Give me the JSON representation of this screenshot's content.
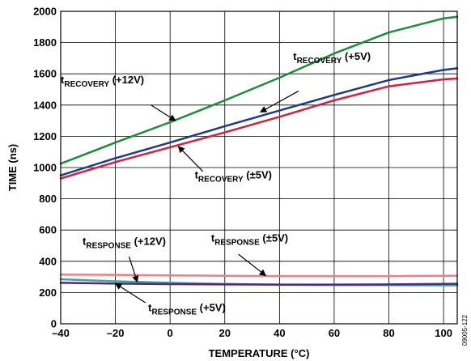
{
  "chart_data": {
    "type": "line",
    "xlabel": "TEMPERATURE (°C)",
    "ylabel": "TIME (ns)",
    "xlim": [
      -40,
      105
    ],
    "ylim": [
      0,
      2000
    ],
    "xticks": [
      -40,
      -20,
      0,
      20,
      40,
      60,
      80,
      100
    ],
    "xtick_labels": [
      "–40",
      "–20",
      "0",
      "20",
      "40",
      "60",
      "80",
      "100"
    ],
    "yticks": [
      0,
      200,
      400,
      600,
      800,
      1000,
      1200,
      1400,
      1600,
      1800,
      2000
    ],
    "ytick_labels": [
      "0",
      "200",
      "400",
      "600",
      "800",
      "1000",
      "1200",
      "1400",
      "1600",
      "1800",
      "2000"
    ],
    "grid": true,
    "figure_id": "09005-122",
    "series": [
      {
        "name": "tRECOVERY (+12V)",
        "color": "#1e8c3a",
        "x": [
          -40,
          -20,
          0,
          20,
          40,
          60,
          80,
          100,
          105
        ],
        "y": [
          1025,
          1160,
          1290,
          1430,
          1575,
          1730,
          1865,
          1955,
          1965
        ]
      },
      {
        "name": "tRECOVERY (+5V)",
        "color": "#1f3a8a",
        "x": [
          -40,
          -20,
          0,
          20,
          40,
          60,
          80,
          100,
          105
        ],
        "y": [
          950,
          1060,
          1160,
          1265,
          1365,
          1465,
          1560,
          1625,
          1635
        ]
      },
      {
        "name": "tRECOVERY (±5V)",
        "color": "#d6203d",
        "x": [
          -40,
          -20,
          0,
          20,
          40,
          60,
          80,
          100,
          105
        ],
        "y": [
          930,
          1035,
          1130,
          1225,
          1325,
          1430,
          1520,
          1565,
          1570
        ]
      },
      {
        "name": "tRESPONSE (±5V)",
        "color": "#ec7f8a",
        "x": [
          -40,
          -20,
          0,
          20,
          40,
          60,
          80,
          100,
          105
        ],
        "y": [
          315,
          313,
          310,
          307,
          305,
          305,
          305,
          307,
          308
        ]
      },
      {
        "name": "tRESPONSE (+12V)",
        "color": "#4aa093",
        "x": [
          -40,
          -20,
          0,
          20,
          40,
          60,
          80,
          100,
          105
        ],
        "y": [
          285,
          272,
          262,
          255,
          250,
          248,
          247,
          246,
          246
        ]
      },
      {
        "name": "tRESPONSE (+5V)",
        "color": "#4b2a8c",
        "x": [
          -40,
          -20,
          0,
          20,
          40,
          60,
          80,
          100,
          105
        ],
        "y": [
          262,
          257,
          254,
          252,
          251,
          251,
          252,
          255,
          256
        ]
      }
    ],
    "annotations": [
      {
        "main": "t",
        "sub": "RECOVERY",
        "suffix": " (+5V)",
        "x": 45,
        "y": 1690,
        "ax": [
          47,
          1490
        ],
        "at": [
          33,
          1355
        ]
      },
      {
        "main": "t",
        "sub": "RECOVERY",
        "suffix": " (+12V)",
        "x": -40,
        "y": 1540,
        "ax": [
          -7,
          1400
        ],
        "at": [
          2,
          1300
        ]
      },
      {
        "main": "t",
        "sub": "RECOVERY",
        "suffix": " (±5V)",
        "x": 9,
        "y": 930,
        "ax": [
          12,
          975
        ],
        "at": [
          3,
          1135
        ]
      },
      {
        "main": "t",
        "sub": "RESPONSE",
        "suffix": " (±5V)",
        "x": 15,
        "y": 525,
        "ax": [
          25,
          445
        ],
        "at": [
          35,
          308
        ]
      },
      {
        "main": "t",
        "sub": "RESPONSE",
        "suffix": " (+12V)",
        "x": -32,
        "y": 505,
        "ax": [
          -15,
          430
        ],
        "at": [
          -12,
          268
        ]
      },
      {
        "main": "t",
        "sub": "RESPONSE",
        "suffix": " (+5V)",
        "x": -8,
        "y": 80,
        "ax": [
          -9,
          135
        ],
        "at": [
          -20,
          258
        ]
      }
    ]
  }
}
